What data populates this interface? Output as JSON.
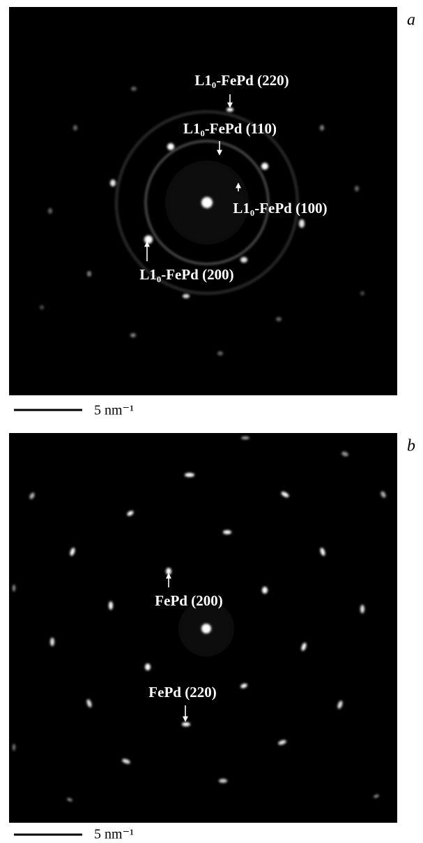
{
  "panels": [
    {
      "label": "a",
      "annotations": [
        "L1₀-FePd (220)",
        "L1₀-FePd (110)",
        "L1₀-FePd (100)",
        "L1₀-FePd (200)"
      ],
      "scale_bar": "5 nm⁻¹"
    },
    {
      "label": "b",
      "annotations": [
        "FePd (200)",
        "FePd (220)"
      ],
      "scale_bar": "5 nm⁻¹"
    }
  ]
}
